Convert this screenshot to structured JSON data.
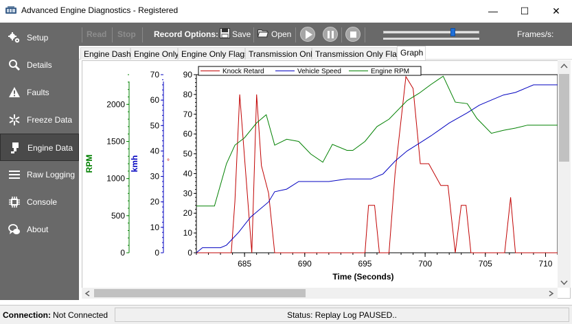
{
  "window": {
    "title": "Advanced Engine Diagnostics - Registered",
    "minimize_glyph": "—",
    "maximize_glyph": "☐",
    "close_glyph": "✕"
  },
  "sidebar": {
    "items": [
      {
        "label": "Setup",
        "icon": "gears-icon"
      },
      {
        "label": "Details",
        "icon": "magnifier-icon"
      },
      {
        "label": "Faults",
        "icon": "warning-icon"
      },
      {
        "label": "Freeze Data",
        "icon": "snowflake-icon"
      },
      {
        "label": "Engine Data",
        "icon": "engine-icon",
        "active": true
      },
      {
        "label": "Raw Logging",
        "icon": "menu-lines-icon"
      },
      {
        "label": "Console",
        "icon": "chip-icon"
      },
      {
        "label": "About",
        "icon": "chat-bubbles-icon"
      }
    ]
  },
  "toolbar": {
    "read_label": "Read",
    "stop_label": "Stop",
    "record_options_label": "Record Options:",
    "save_label": "Save",
    "open_label": "Open",
    "frames_label": "Frames/s:",
    "slider_value": 0.73
  },
  "tabs": [
    {
      "label": "Engine Dash"
    },
    {
      "label": "Engine Only"
    },
    {
      "label": "Engine Only Flags"
    },
    {
      "label": "Transmission Only"
    },
    {
      "label": "Transmission Only Flags"
    },
    {
      "label": "Graph",
      "active": true
    }
  ],
  "chart_data": {
    "type": "line",
    "xlabel": "Time (Seconds)",
    "xlim": [
      681,
      711
    ],
    "x_ticks": [
      685,
      690,
      695,
      700,
      705,
      710
    ],
    "grid": false,
    "legend_position": "top-left",
    "colors": {
      "knock": "#c00000",
      "speed": "#0000c0",
      "rpm": "#008000"
    },
    "axes": [
      {
        "label": "RPM",
        "color": "#008000",
        "ticks": [
          0,
          500,
          1000,
          1500,
          2000
        ],
        "range": [
          0,
          2400
        ]
      },
      {
        "label": "kmh",
        "color": "#0000c0",
        "ticks": [
          0,
          10,
          20,
          30,
          40,
          50,
          60,
          70
        ],
        "range": [
          0,
          70
        ]
      },
      {
        "label": "°",
        "color": "#c00000",
        "ticks": [
          0,
          10,
          20,
          30,
          40,
          50,
          60,
          70,
          80,
          90
        ],
        "range": [
          0,
          90
        ]
      }
    ],
    "series": [
      {
        "name": "Knock Retard",
        "axis": 2,
        "x": [
          681,
          683.9,
          684.2,
          684.6,
          685.6,
          686.0,
          686.4,
          687.0,
          687.5,
          695.0,
          695.3,
          695.8,
          696.2,
          697.0,
          697.5,
          698.4,
          699.0,
          699.6,
          700.3,
          701.3,
          701.9,
          702.5,
          703.0,
          703.4,
          703.8,
          704.3,
          706.6,
          707.1,
          707.5,
          711
        ],
        "y": [
          0,
          0,
          26,
          80,
          0,
          80,
          44,
          30,
          0,
          0,
          24,
          24,
          0,
          0,
          40,
          89,
          83,
          45,
          45,
          34,
          34,
          0,
          24,
          24,
          0,
          0,
          0,
          28,
          0,
          0
        ]
      },
      {
        "name": "Vehicle Speed",
        "axis": 1,
        "x": [
          681,
          681.5,
          683,
          683.5,
          684.5,
          685.5,
          687,
          687.5,
          688.5,
          689.5,
          692,
          693.5,
          695.5,
          696.5,
          697.5,
          698.5,
          699.5,
          700.5,
          702,
          703.5,
          704.5,
          705.5,
          706.5,
          707.5,
          708.5,
          709,
          711
        ],
        "y": [
          0,
          2,
          2,
          3,
          8,
          14,
          20,
          24,
          25,
          28,
          28,
          29,
          29,
          31,
          36,
          40,
          43,
          46,
          51,
          55,
          58,
          60,
          62,
          63,
          65,
          66,
          66
        ]
      },
      {
        "name": "Engine RPM",
        "axis": 0,
        "x": [
          681,
          682.5,
          683.5,
          684.2,
          685,
          686,
          686.8,
          687.5,
          688.5,
          689.5,
          690.5,
          691.5,
          692.3,
          693.5,
          694,
          695,
          696,
          697,
          698.5,
          699.5,
          700.5,
          701.5,
          702.5,
          703.5,
          704.3,
          705.5,
          706.5,
          707.5,
          708.5,
          709.5,
          711
        ],
        "y": [
          630,
          630,
          1200,
          1450,
          1550,
          1750,
          1860,
          1450,
          1530,
          1500,
          1330,
          1220,
          1460,
          1380,
          1380,
          1500,
          1700,
          1800,
          2050,
          2150,
          2270,
          2380,
          2030,
          2010,
          1810,
          1610,
          1650,
          1680,
          1720,
          1720,
          1720
        ]
      }
    ]
  },
  "status": {
    "connection_label": "Connection:",
    "connection_value": "Not Connected",
    "status_text": "Status: Replay Log PAUSED.."
  }
}
